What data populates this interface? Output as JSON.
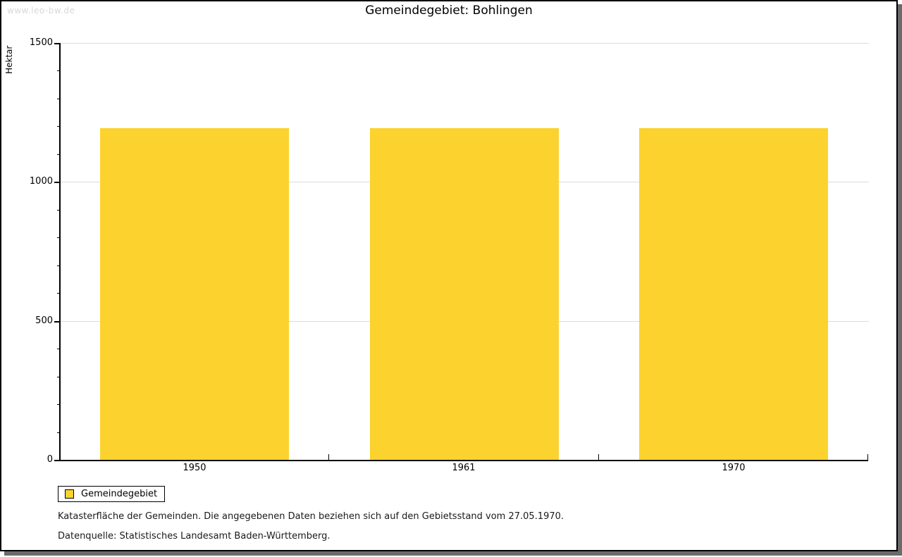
{
  "watermark": {
    "text": "www.leo-bw.de",
    "color": "#d8d8d8"
  },
  "title": "Gemeindegebiet: Bohlingen",
  "chart_data": {
    "type": "bar",
    "title": "Gemeindegebiet: Bohlingen",
    "categories": [
      "1950",
      "1961",
      "1970"
    ],
    "series": [
      {
        "name": "Gemeindegebiet",
        "values": [
          1193,
          1193,
          1193
        ]
      }
    ],
    "xlabel": "",
    "ylabel": "Hektar",
    "ylim": [
      0,
      1500
    ],
    "ytick_major_step": 500,
    "ytick_minor_step": 100,
    "ytick_labels": [
      "0",
      "500",
      "1000",
      "1500"
    ],
    "grid": "horizontal-major",
    "legend_position": "below-left",
    "bar_color": "#fcd32e",
    "gridline_color": "#dcdcdc",
    "axis_color": "#000000"
  },
  "legend": {
    "label": "Gemeindegebiet"
  },
  "footnotes": {
    "line1": "Katasterfläche der Gemeinden. Die angegebenen Daten beziehen sich auf den Gebietsstand vom 27.05.1970.",
    "line2": "Datenquelle: Statistisches Landesamt Baden-Württemberg."
  }
}
